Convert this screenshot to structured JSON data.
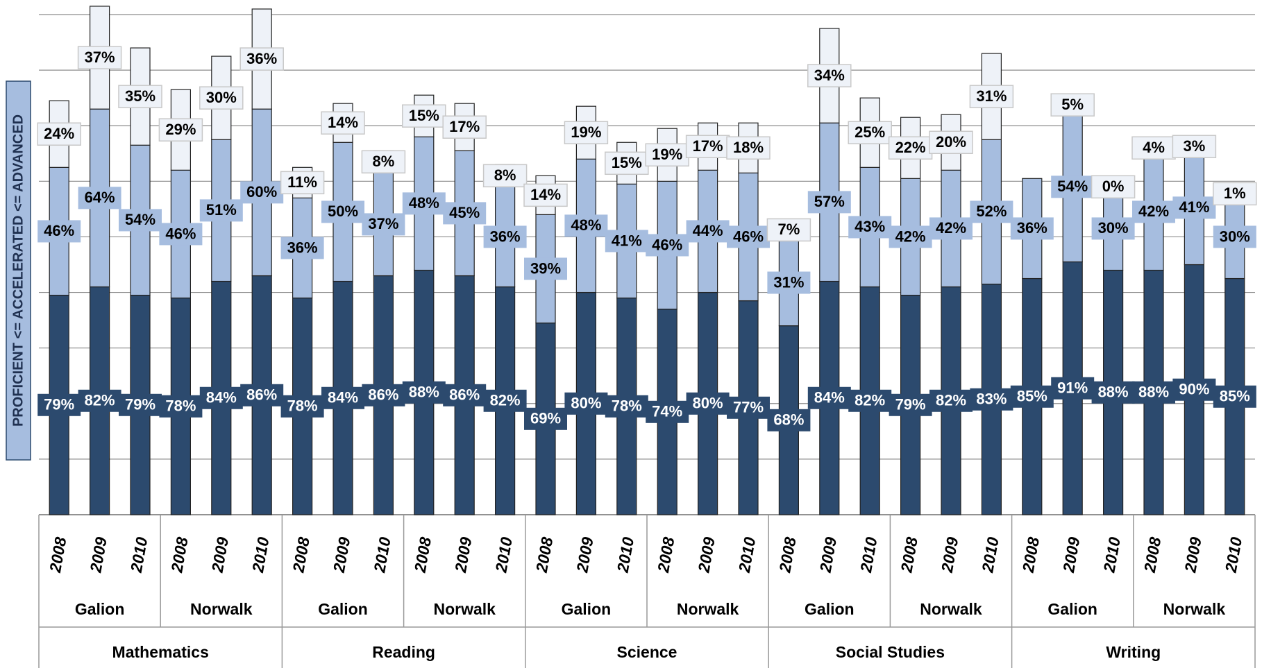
{
  "chart_data": {
    "type": "stacked_bar",
    "y_label": "PROFICIENT <= ACCELERATED <= ADVANCED",
    "categories": [
      "2008",
      "2009",
      "2010",
      "2008",
      "2009",
      "2010",
      "2008",
      "2009",
      "2010",
      "2008",
      "2009",
      "2010",
      "2008",
      "2009",
      "2010",
      "2008",
      "2009",
      "2010",
      "2008",
      "2009",
      "2010",
      "2008",
      "2009",
      "2010",
      "2008",
      "2009",
      "2010",
      "2008",
      "2009",
      "2010"
    ],
    "groups": [
      "Galion",
      "Norwalk",
      "Galion",
      "Norwalk",
      "Galion",
      "Norwalk",
      "Galion",
      "Norwalk",
      "Galion",
      "Norwalk"
    ],
    "subjects": [
      "Mathematics",
      "Reading",
      "Science",
      "Social Studies",
      "Writing"
    ],
    "series": [
      {
        "color": "#2c4a6e",
        "label_color": "#ffffff",
        "values": [
          79,
          82,
          79,
          78,
          84,
          86,
          78,
          84,
          86,
          88,
          86,
          82,
          69,
          80,
          78,
          74,
          80,
          77,
          68,
          84,
          82,
          79,
          82,
          83,
          85,
          91,
          88,
          88,
          90,
          85
        ],
        "value_labels": [
          "79%",
          "82%",
          "79%",
          "78%",
          "84%",
          "86%",
          "78%",
          "84%",
          "86%",
          "88%",
          "86%",
          "82%",
          "69%",
          "80%",
          "78%",
          "74%",
          "80%",
          "77%",
          "68%",
          "84%",
          "82%",
          "79%",
          "82%",
          "83%",
          "85%",
          "91%",
          "88%",
          "88%",
          "90%",
          "85%"
        ]
      },
      {
        "color": "#a6bddf",
        "label_color": "#000000",
        "values": [
          46,
          64,
          54,
          46,
          51,
          60,
          36,
          50,
          37,
          48,
          45,
          36,
          39,
          48,
          41,
          46,
          44,
          46,
          31,
          57,
          43,
          42,
          42,
          52,
          36,
          54,
          30,
          42,
          41,
          30
        ],
        "value_labels": [
          "46%",
          "64%",
          "54%",
          "46%",
          "51%",
          "60%",
          "36%",
          "50%",
          "37%",
          "48%",
          "45%",
          "36%",
          "39%",
          "48%",
          "41%",
          "46%",
          "44%",
          "46%",
          "31%",
          "57%",
          "43%",
          "42%",
          "42%",
          "52%",
          "36%",
          "54%",
          "30%",
          "42%",
          "41%",
          "30%"
        ]
      },
      {
        "color": "#eef2f8",
        "label_color": "#000000",
        "values": [
          24,
          37,
          35,
          29,
          30,
          36,
          11,
          14,
          8,
          15,
          17,
          8,
          14,
          19,
          15,
          19,
          17,
          18,
          7,
          34,
          25,
          22,
          20,
          31,
          null,
          5,
          0,
          4,
          3,
          1
        ],
        "value_labels": [
          "24%",
          "37%",
          "35%",
          "29%",
          "30%",
          "36%",
          "11%",
          "14%",
          "8%",
          "15%",
          "17%",
          "8%",
          "14%",
          "19%",
          "15%",
          "19%",
          "17%",
          "18%",
          "7%",
          "34%",
          "25%",
          "22%",
          "20%",
          "31%",
          null,
          "5%",
          "0%",
          "4%",
          "3%",
          "1%"
        ]
      }
    ],
    "ylim": [
      0,
      180
    ],
    "yticks": [
      0,
      20,
      40,
      60,
      80,
      100,
      120,
      140,
      160,
      180
    ],
    "grid": true
  }
}
